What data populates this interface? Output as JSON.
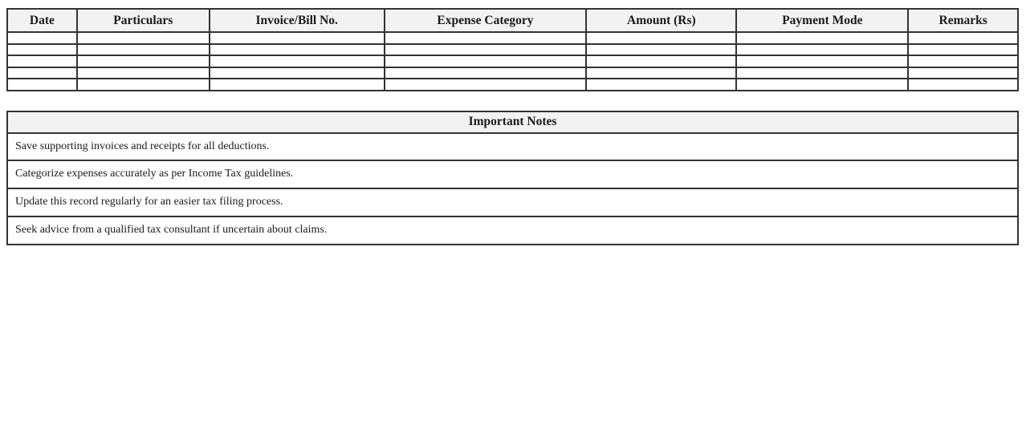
{
  "colors": {
    "page_bg": "#ffffff",
    "header_bg": "#f2f2f2",
    "border": "#333333",
    "text": "#1a1a1a"
  },
  "expense_table": {
    "columns": [
      "Date",
      "Particulars",
      "Invoice/Bill No.",
      "Expense Category",
      "Amount (Rs)",
      "Payment Mode",
      "Remarks"
    ],
    "empty_rows": 5,
    "cell_values": ""
  },
  "notes_table": {
    "title": "Important Notes",
    "notes": [
      "Save supporting invoices and receipts for all deductions.",
      "Categorize expenses accurately as per Income Tax guidelines.",
      "Update this record regularly for an easier tax filing process.",
      "Seek advice from a qualified tax consultant if uncertain about claims."
    ]
  }
}
